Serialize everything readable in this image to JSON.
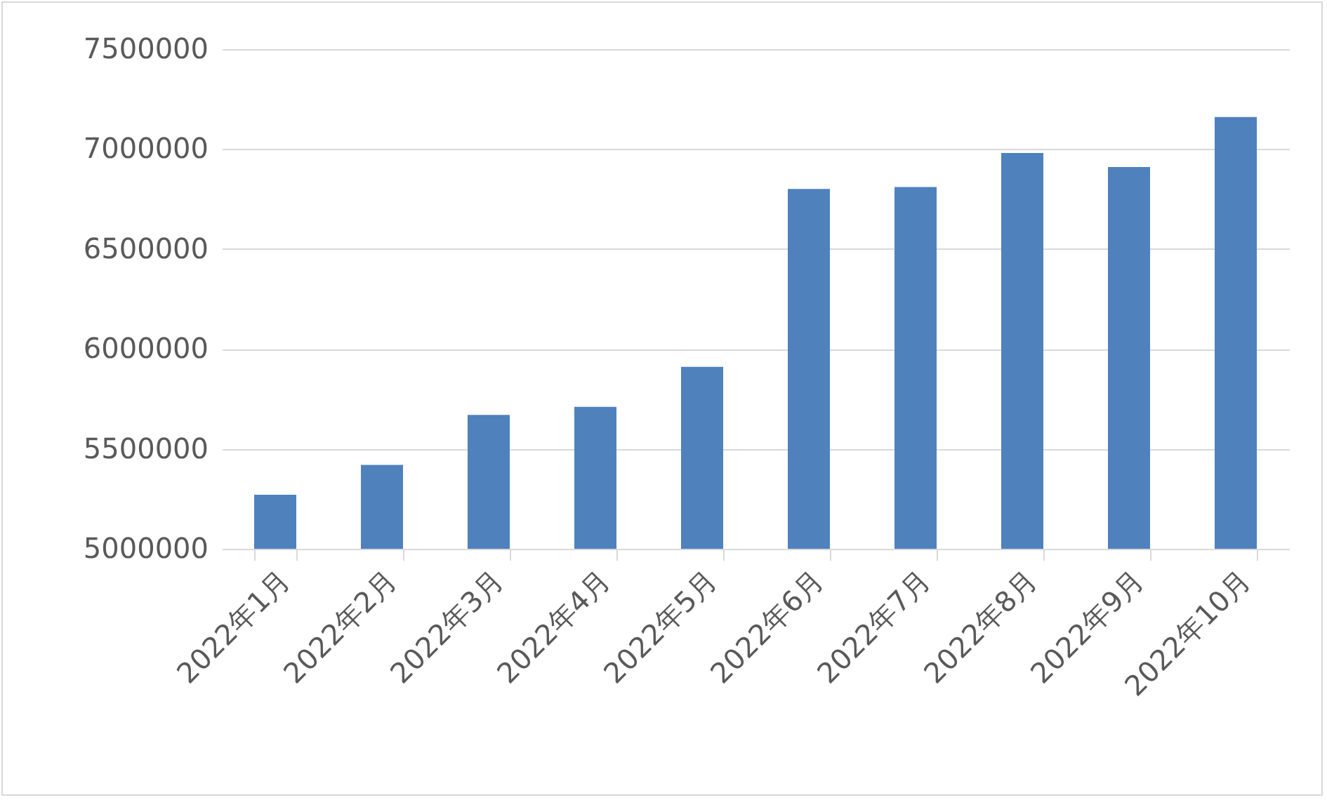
{
  "chart_data": {
    "type": "bar",
    "categories": [
      "2022年1月",
      "2022年2月",
      "2022年3月",
      "2022年4月",
      "2022年5月",
      "2022年6月",
      "2022年7月",
      "2022年8月",
      "2022年9月",
      "2022年10月"
    ],
    "values": [
      5270000,
      5420000,
      5670000,
      5710000,
      5910000,
      6800000,
      6810000,
      6980000,
      6910000,
      7160000
    ],
    "color": "#4f81bd",
    "ylim": [
      5000000,
      7500000
    ],
    "yticks": [
      5000000,
      5500000,
      6000000,
      6500000,
      7000000,
      7500000
    ],
    "grid": "y"
  }
}
